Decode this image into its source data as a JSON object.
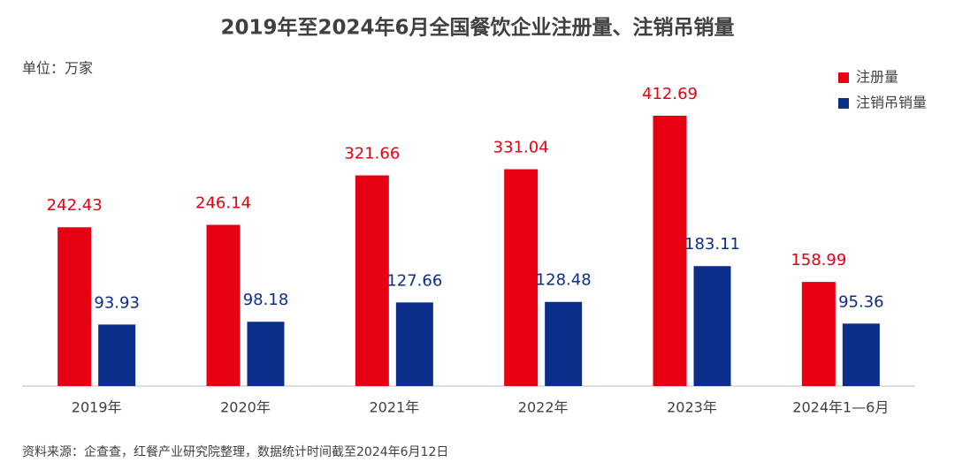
{
  "chart_data": {
    "type": "bar",
    "title": "2019年至2024年6月全国餐饮企业注册量、注销吊销量",
    "unit_label": "单位：万家",
    "source": "资料来源：企查查，红餐产业研究院整理，数据统计时间截至2024年6月12日",
    "categories": [
      "2019年",
      "2020年",
      "2021年",
      "2022年",
      "2023年",
      "2024年1—6月"
    ],
    "series": [
      {
        "name": "注册量",
        "color": "#e60012",
        "values": [
          242.43,
          246.14,
          321.66,
          331.04,
          412.69,
          158.99
        ]
      },
      {
        "name": "注销吊销量",
        "color": "#0a2e8a",
        "values": [
          93.93,
          98.18,
          127.66,
          128.48,
          183.11,
          95.36
        ]
      }
    ],
    "legend": "top-right"
  }
}
